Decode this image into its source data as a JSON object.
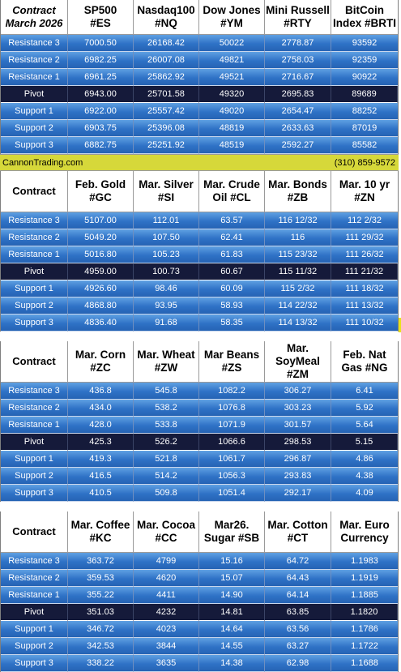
{
  "contact": {
    "website": "CannonTrading.com",
    "phone": "(310) 859-9572"
  },
  "row_labels": [
    "Resistance 3",
    "Resistance 2",
    "Resistance 1",
    "Pivot",
    "Support 1",
    "Support 2",
    "Support 3"
  ],
  "tables": [
    {
      "header_first": [
        "Contract",
        "March 2026"
      ],
      "columns": [
        {
          "title": [
            "SP500",
            "#ES"
          ],
          "values": [
            "7000.50",
            "6982.25",
            "6961.25",
            "6943.00",
            "6922.00",
            "6903.75",
            "6882.75"
          ]
        },
        {
          "title": [
            "Nasdaq100",
            "#NQ"
          ],
          "values": [
            "26168.42",
            "26007.08",
            "25862.92",
            "25701.58",
            "25557.42",
            "25396.08",
            "25251.92"
          ]
        },
        {
          "title": [
            "Dow Jones",
            "#YM"
          ],
          "values": [
            "50022",
            "49821",
            "49521",
            "49320",
            "49020",
            "48819",
            "48519"
          ]
        },
        {
          "title": [
            "Mini Russell",
            "#RTY"
          ],
          "values": [
            "2778.87",
            "2758.03",
            "2716.67",
            "2695.83",
            "2654.47",
            "2633.63",
            "2592.27"
          ]
        },
        {
          "title": [
            "BitCoin",
            "Index #BRTI"
          ],
          "values": [
            "93592",
            "92359",
            "90922",
            "89689",
            "88252",
            "87019",
            "85582"
          ]
        }
      ]
    },
    {
      "header_first": [
        "Contract"
      ],
      "columns": [
        {
          "title": [
            "Feb. Gold",
            "#GC"
          ],
          "values": [
            "5107.00",
            "5049.20",
            "5016.80",
            "4959.00",
            "4926.60",
            "4868.80",
            "4836.40"
          ]
        },
        {
          "title": [
            "Mar. Silver",
            "#SI"
          ],
          "values": [
            "112.01",
            "107.50",
            "105.23",
            "100.73",
            "98.46",
            "93.95",
            "91.68"
          ]
        },
        {
          "title": [
            "Mar. Crude",
            "Oil #CL"
          ],
          "values": [
            "63.57",
            "62.41",
            "61.83",
            "60.67",
            "60.09",
            "58.93",
            "58.35"
          ]
        },
        {
          "title": [
            "Mar. Bonds",
            "#ZB"
          ],
          "values": [
            "116 12/32",
            "116",
            "115 23/32",
            "115 11/32",
            "115  2/32",
            "114 22/32",
            "114 13/32"
          ]
        },
        {
          "title": [
            "Mar. 10 yr",
            "#ZN"
          ],
          "values": [
            "112  2/32",
            "111 29/32",
            "111 26/32",
            "111 21/32",
            "111 18/32",
            "111 13/32",
            "111 10/32"
          ]
        }
      ]
    },
    {
      "header_first": [
        "Contract"
      ],
      "columns": [
        {
          "title": [
            "Mar. Corn",
            "#ZC"
          ],
          "values": [
            "436.8",
            "434.0",
            "428.0",
            "425.3",
            "419.3",
            "416.5",
            "410.5"
          ]
        },
        {
          "title": [
            "Mar.  Wheat",
            "#ZW"
          ],
          "values": [
            "545.8",
            "538.2",
            "533.8",
            "526.2",
            "521.8",
            "514.2",
            "509.8"
          ]
        },
        {
          "title": [
            "Mar Beans",
            "#ZS"
          ],
          "values": [
            "1082.2",
            "1076.8",
            "1071.9",
            "1066.6",
            "1061.7",
            "1056.3",
            "1051.4"
          ]
        },
        {
          "title": [
            "Mar.",
            "SoyMeal",
            "#ZM"
          ],
          "values": [
            "306.27",
            "303.23",
            "301.57",
            "298.53",
            "296.87",
            "293.83",
            "292.17"
          ]
        },
        {
          "title": [
            "Feb. Nat",
            "Gas #NG"
          ],
          "values": [
            "6.41",
            "5.92",
            "5.64",
            "5.15",
            "4.86",
            "4.38",
            "4.09"
          ]
        }
      ]
    },
    {
      "header_first": [
        "Contract"
      ],
      "columns": [
        {
          "title": [
            "Mar. Coffee",
            "#KC"
          ],
          "values": [
            "363.72",
            "359.53",
            "355.22",
            "351.03",
            "346.72",
            "342.53",
            "338.22"
          ]
        },
        {
          "title": [
            "Mar. Cocoa",
            "#CC"
          ],
          "values": [
            "4799",
            "4620",
            "4411",
            "4232",
            "4023",
            "3844",
            "3635"
          ]
        },
        {
          "title": [
            "Mar26.",
            "Sugar #SB"
          ],
          "values": [
            "15.16",
            "15.07",
            "14.90",
            "14.81",
            "14.64",
            "14.55",
            "14.38"
          ]
        },
        {
          "title": [
            "Mar. Cotton",
            "#CT"
          ],
          "values": [
            "64.72",
            "64.43",
            "64.14",
            "63.85",
            "63.56",
            "63.27",
            "62.98"
          ]
        },
        {
          "title": [
            "Mar. Euro",
            "Currency"
          ],
          "values": [
            "1.1983",
            "1.1919",
            "1.1885",
            "1.1820",
            "1.1786",
            "1.1722",
            "1.1688"
          ]
        }
      ]
    }
  ]
}
